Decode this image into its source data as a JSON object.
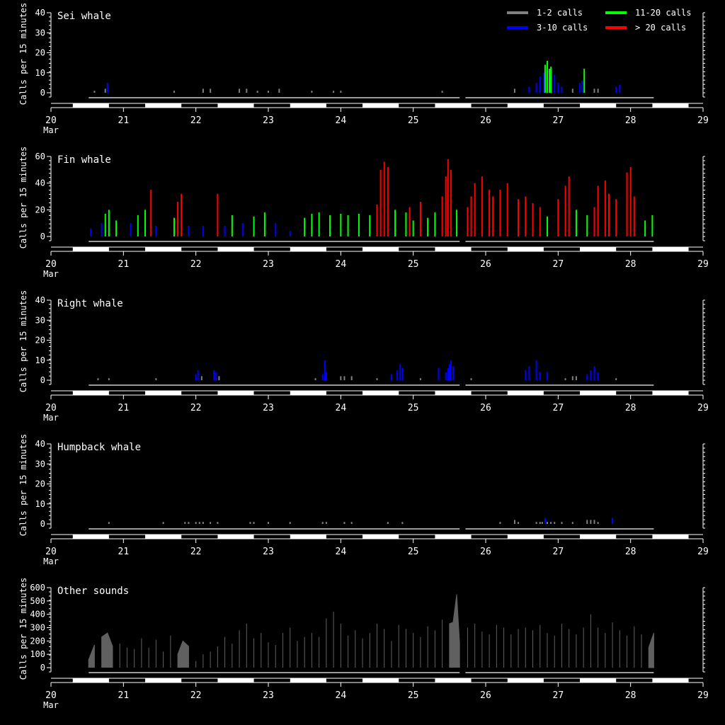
{
  "legend": {
    "items": [
      {
        "label": "1-2 calls",
        "color": "#808080"
      },
      {
        "label": "3-10 calls",
        "color": "#0000ff"
      },
      {
        "label": "11-20 calls",
        "color": "#00ff00"
      },
      {
        "label": "> 20 calls",
        "color": "#ff0000"
      }
    ]
  },
  "ylabel": "Calls per 15 minutes",
  "x_ticks": [
    "20",
    "21",
    "22",
    "23",
    "24",
    "25",
    "26",
    "27",
    "28",
    "29"
  ],
  "x_month": "Mar",
  "chart_data": [
    {
      "type": "bar",
      "title": "Sei whale",
      "ylabel": "Calls per 15 minutes",
      "ylim": [
        0,
        40
      ],
      "yticks": [
        0,
        10,
        20,
        30,
        40
      ],
      "xlim": [
        20,
        29
      ],
      "x_unit": "day of March",
      "color_rule": "bar color by count: 1-2 grey, 3-10 blue, 11-20 green, >20 red",
      "values": [
        [
          20.6,
          1
        ],
        [
          20.75,
          2
        ],
        [
          20.78,
          5
        ],
        [
          21.7,
          1
        ],
        [
          22.1,
          2
        ],
        [
          22.2,
          2
        ],
        [
          22.6,
          2
        ],
        [
          22.7,
          2
        ],
        [
          22.85,
          1
        ],
        [
          23.0,
          1
        ],
        [
          23.15,
          2
        ],
        [
          23.6,
          1
        ],
        [
          23.9,
          1
        ],
        [
          24.0,
          1
        ],
        [
          25.4,
          1
        ],
        [
          26.4,
          2
        ],
        [
          26.6,
          3
        ],
        [
          26.7,
          5
        ],
        [
          26.75,
          8
        ],
        [
          26.8,
          10
        ],
        [
          26.82,
          14
        ],
        [
          26.85,
          16
        ],
        [
          26.88,
          12
        ],
        [
          26.9,
          13
        ],
        [
          26.95,
          9
        ],
        [
          27.0,
          5
        ],
        [
          27.05,
          3
        ],
        [
          27.2,
          2
        ],
        [
          27.3,
          5
        ],
        [
          27.33,
          6
        ],
        [
          27.36,
          12
        ],
        [
          27.5,
          2
        ],
        [
          27.55,
          2
        ],
        [
          27.8,
          3
        ],
        [
          27.85,
          4
        ]
      ]
    },
    {
      "type": "bar",
      "title": "Fin whale",
      "ylabel": "Calls per 15 minutes",
      "ylim": [
        0,
        60
      ],
      "yticks": [
        0,
        20,
        40,
        60
      ],
      "xlim": [
        20,
        29
      ],
      "x_unit": "day of March",
      "color_rule": "bar color by count: 1-2 grey, 3-10 blue, 11-20 green, >20 red",
      "values": [
        [
          20.55,
          6
        ],
        [
          20.7,
          10
        ],
        [
          20.75,
          17
        ],
        [
          20.8,
          20
        ],
        [
          20.9,
          12
        ],
        [
          21.1,
          10
        ],
        [
          21.2,
          16
        ],
        [
          21.3,
          20
        ],
        [
          21.38,
          35
        ],
        [
          21.45,
          8
        ],
        [
          21.7,
          14
        ],
        [
          21.75,
          26
        ],
        [
          21.8,
          32
        ],
        [
          21.9,
          8
        ],
        [
          22.1,
          8
        ],
        [
          22.3,
          32
        ],
        [
          22.4,
          8
        ],
        [
          22.5,
          16
        ],
        [
          22.65,
          10
        ],
        [
          22.8,
          15
        ],
        [
          22.95,
          18
        ],
        [
          23.1,
          10
        ],
        [
          23.3,
          4
        ],
        [
          23.5,
          14
        ],
        [
          23.6,
          17
        ],
        [
          23.7,
          18
        ],
        [
          23.85,
          16
        ],
        [
          24.0,
          17
        ],
        [
          24.1,
          16
        ],
        [
          24.25,
          17
        ],
        [
          24.4,
          16
        ],
        [
          24.5,
          24
        ],
        [
          24.55,
          50
        ],
        [
          24.6,
          56
        ],
        [
          24.65,
          52
        ],
        [
          24.75,
          20
        ],
        [
          24.9,
          18
        ],
        [
          24.95,
          22
        ],
        [
          25.0,
          12
        ],
        [
          25.1,
          26
        ],
        [
          25.2,
          14
        ],
        [
          25.3,
          18
        ],
        [
          25.4,
          30
        ],
        [
          25.45,
          45
        ],
        [
          25.48,
          58
        ],
        [
          25.52,
          50
        ],
        [
          25.6,
          20
        ],
        [
          25.75,
          22
        ],
        [
          25.8,
          30
        ],
        [
          25.85,
          40
        ],
        [
          25.95,
          45
        ],
        [
          26.05,
          35
        ],
        [
          26.1,
          30
        ],
        [
          26.2,
          35
        ],
        [
          26.3,
          40
        ],
        [
          26.45,
          28
        ],
        [
          26.55,
          30
        ],
        [
          26.65,
          25
        ],
        [
          26.75,
          22
        ],
        [
          26.85,
          15
        ],
        [
          27.0,
          28
        ],
        [
          27.1,
          38
        ],
        [
          27.15,
          45
        ],
        [
          27.25,
          20
        ],
        [
          27.4,
          16
        ],
        [
          27.5,
          22
        ],
        [
          27.55,
          38
        ],
        [
          27.65,
          42
        ],
        [
          27.7,
          32
        ],
        [
          27.8,
          28
        ],
        [
          27.95,
          48
        ],
        [
          28.0,
          52
        ],
        [
          28.05,
          30
        ],
        [
          28.2,
          12
        ],
        [
          28.3,
          16
        ]
      ]
    },
    {
      "type": "bar",
      "title": "Right whale",
      "ylabel": "Calls per 15 minutes",
      "ylim": [
        0,
        40
      ],
      "yticks": [
        0,
        10,
        20,
        30,
        40
      ],
      "xlim": [
        20,
        29
      ],
      "x_unit": "day of March",
      "color_rule": "bar color by count: 1-2 grey, 3-10 blue, 11-20 green, >20 red",
      "values": [
        [
          20.65,
          1
        ],
        [
          20.8,
          1
        ],
        [
          21.45,
          1
        ],
        [
          22.0,
          3
        ],
        [
          22.03,
          5
        ],
        [
          22.08,
          2
        ],
        [
          22.25,
          5
        ],
        [
          22.28,
          4
        ],
        [
          22.32,
          2
        ],
        [
          23.65,
          1
        ],
        [
          23.75,
          3
        ],
        [
          23.78,
          10
        ],
        [
          23.8,
          4
        ],
        [
          24.0,
          2
        ],
        [
          24.05,
          2
        ],
        [
          24.15,
          2
        ],
        [
          24.5,
          1
        ],
        [
          24.7,
          3
        ],
        [
          24.78,
          5
        ],
        [
          24.82,
          8
        ],
        [
          24.85,
          6
        ],
        [
          25.1,
          1
        ],
        [
          25.35,
          6
        ],
        [
          25.45,
          4
        ],
        [
          25.48,
          6
        ],
        [
          25.5,
          8
        ],
        [
          25.52,
          10
        ],
        [
          25.55,
          7
        ],
        [
          25.8,
          1
        ],
        [
          26.55,
          5
        ],
        [
          26.6,
          7
        ],
        [
          26.7,
          10
        ],
        [
          26.75,
          4
        ],
        [
          26.85,
          4
        ],
        [
          27.1,
          1
        ],
        [
          27.2,
          2
        ],
        [
          27.25,
          2
        ],
        [
          27.4,
          3
        ],
        [
          27.45,
          5
        ],
        [
          27.5,
          7
        ],
        [
          27.55,
          4
        ],
        [
          27.8,
          1
        ]
      ]
    },
    {
      "type": "bar",
      "title": "Humpback whale",
      "ylabel": "Calls per 15 minutes",
      "ylim": [
        0,
        40
      ],
      "yticks": [
        0,
        10,
        20,
        30,
        40
      ],
      "xlim": [
        20,
        29
      ],
      "x_unit": "day of March",
      "color_rule": "bar color by count: 1-2 grey, 3-10 blue, 11-20 green, >20 red",
      "values": [
        [
          20.8,
          1
        ],
        [
          21.55,
          1
        ],
        [
          21.85,
          1
        ],
        [
          21.9,
          1
        ],
        [
          22.0,
          1
        ],
        [
          22.05,
          1
        ],
        [
          22.1,
          1
        ],
        [
          22.2,
          1
        ],
        [
          22.3,
          1
        ],
        [
          22.75,
          1
        ],
        [
          22.8,
          1
        ],
        [
          23.0,
          1
        ],
        [
          23.3,
          1
        ],
        [
          23.75,
          1
        ],
        [
          23.8,
          1
        ],
        [
          24.05,
          1
        ],
        [
          24.15,
          1
        ],
        [
          24.65,
          1
        ],
        [
          24.85,
          1
        ],
        [
          26.2,
          1
        ],
        [
          26.4,
          2
        ],
        [
          26.45,
          1
        ],
        [
          26.7,
          1
        ],
        [
          26.75,
          1
        ],
        [
          26.78,
          1
        ],
        [
          26.82,
          3
        ],
        [
          26.85,
          1
        ],
        [
          26.9,
          1
        ],
        [
          26.95,
          1
        ],
        [
          27.05,
          1
        ],
        [
          27.2,
          1
        ],
        [
          27.4,
          2
        ],
        [
          27.45,
          2
        ],
        [
          27.5,
          2
        ],
        [
          27.55,
          1
        ],
        [
          27.75,
          3
        ]
      ]
    },
    {
      "type": "area",
      "title": "Other sounds",
      "ylabel": "Calls per 15 minutes",
      "ylim": [
        0,
        600
      ],
      "yticks": [
        0,
        100,
        200,
        300,
        400,
        500,
        600
      ],
      "xlim": [
        20,
        29
      ],
      "x_unit": "day of March",
      "color": "#606060",
      "x": [
        20.52,
        20.6,
        20.7,
        20.78,
        20.85,
        20.95,
        21.05,
        21.15,
        21.25,
        21.35,
        21.45,
        21.55,
        21.65,
        21.75,
        21.82,
        21.9,
        22.0,
        22.1,
        22.2,
        22.3,
        22.4,
        22.5,
        22.6,
        22.7,
        22.8,
        22.9,
        23.0,
        23.1,
        23.2,
        23.3,
        23.4,
        23.5,
        23.6,
        23.7,
        23.8,
        23.9,
        24.0,
        24.1,
        24.2,
        24.3,
        24.4,
        24.5,
        24.6,
        24.7,
        24.8,
        24.9,
        25.0,
        25.1,
        25.2,
        25.3,
        25.4,
        25.5,
        25.55,
        25.6,
        25.64,
        25.75,
        25.85,
        25.95,
        26.05,
        26.15,
        26.25,
        26.35,
        26.45,
        26.55,
        26.65,
        26.75,
        26.85,
        26.95,
        27.05,
        27.15,
        27.25,
        27.35,
        27.45,
        27.55,
        27.65,
        27.75,
        27.85,
        27.95,
        28.05,
        28.15,
        28.25,
        28.32
      ],
      "values": [
        60,
        170,
        230,
        260,
        160,
        180,
        150,
        140,
        220,
        150,
        210,
        120,
        240,
        100,
        200,
        160,
        50,
        100,
        120,
        160,
        230,
        180,
        280,
        330,
        220,
        260,
        190,
        170,
        260,
        300,
        200,
        230,
        260,
        230,
        370,
        420,
        330,
        240,
        280,
        220,
        260,
        330,
        290,
        200,
        320,
        290,
        260,
        230,
        310,
        280,
        360,
        330,
        340,
        550,
        180,
        300,
        330,
        270,
        250,
        320,
        300,
        250,
        290,
        300,
        280,
        320,
        260,
        240,
        330,
        290,
        250,
        300,
        400,
        300,
        260,
        340,
        280,
        240,
        310,
        250,
        150,
        260
      ]
    }
  ]
}
